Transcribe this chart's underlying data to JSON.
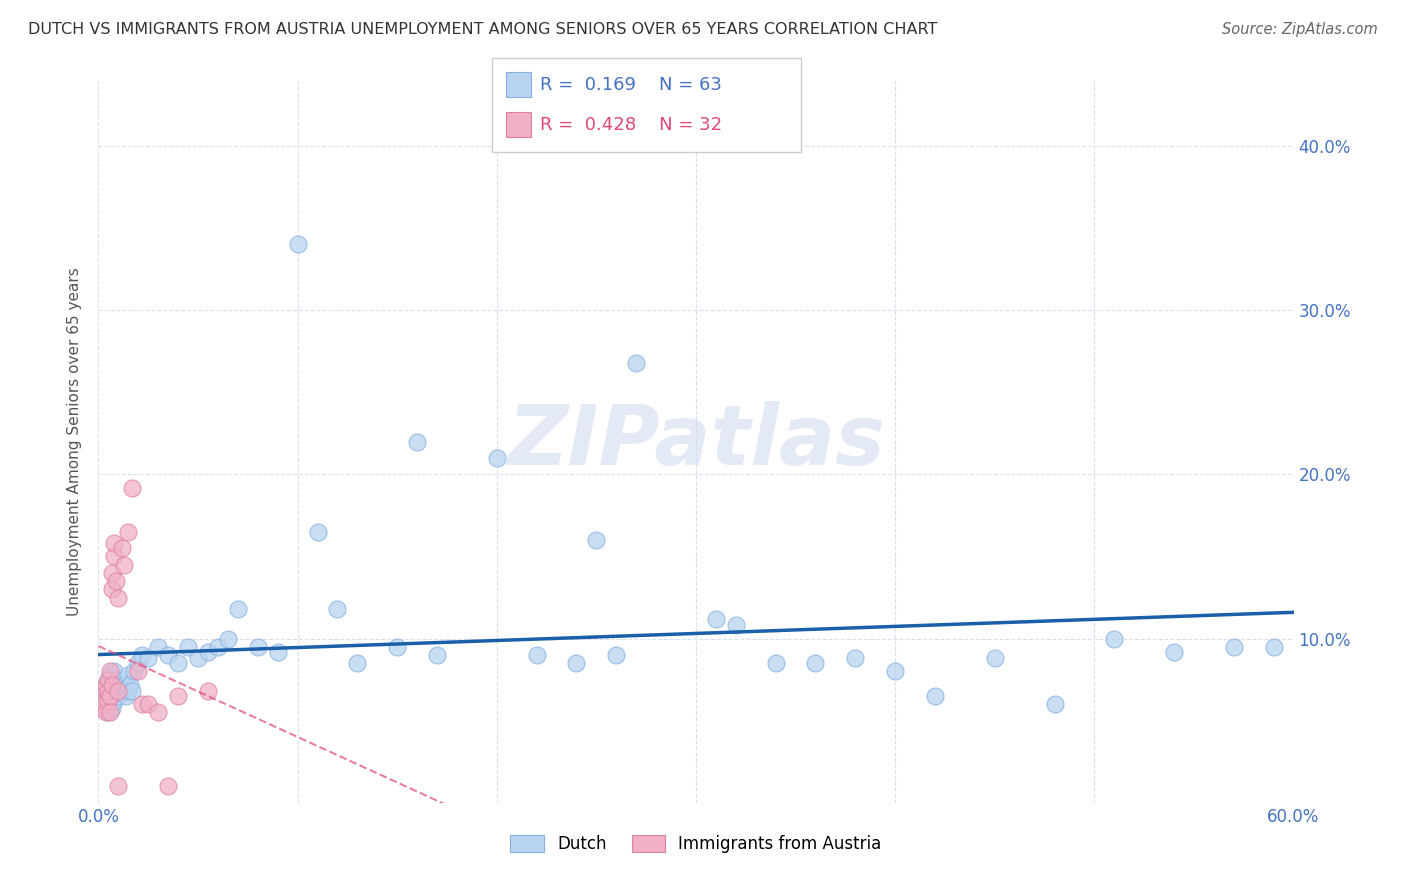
{
  "title": "DUTCH VS IMMIGRANTS FROM AUSTRIA UNEMPLOYMENT AMONG SENIORS OVER 65 YEARS CORRELATION CHART",
  "source": "Source: ZipAtlas.com",
  "ylabel": "Unemployment Among Seniors over 65 years",
  "xlim": [
    0.0,
    0.6
  ],
  "ylim": [
    0.0,
    0.44
  ],
  "xticks": [
    0.0,
    0.1,
    0.2,
    0.3,
    0.4,
    0.5,
    0.6
  ],
  "xtick_labels": [
    "0.0%",
    "",
    "",
    "",
    "",
    "",
    "60.0%"
  ],
  "yticks": [
    0.0,
    0.1,
    0.2,
    0.3,
    0.4
  ],
  "ytick_labels_right": [
    "",
    "10.0%",
    "20.0%",
    "30.0%",
    "40.0%"
  ],
  "legend_labels": [
    "Dutch",
    "Immigrants from Austria"
  ],
  "dutch_color": "#b8d4f0",
  "austria_color": "#f0b0c8",
  "dutch_edge": "#85b0e0",
  "austria_edge": "#e080a0",
  "dutch_R": 0.169,
  "dutch_N": 63,
  "austria_R": 0.428,
  "austria_N": 32,
  "dutch_line_color": "#1a5fa8",
  "austria_line_color": "#e04878",
  "watermark": "ZIPatlas",
  "dutch_x": [
    0.002,
    0.003,
    0.004,
    0.005,
    0.005,
    0.006,
    0.006,
    0.007,
    0.007,
    0.008,
    0.008,
    0.009,
    0.01,
    0.01,
    0.011,
    0.012,
    0.013,
    0.014,
    0.015,
    0.015,
    0.016,
    0.017,
    0.018,
    0.02,
    0.022,
    0.025,
    0.03,
    0.035,
    0.04,
    0.045,
    0.05,
    0.055,
    0.06,
    0.065,
    0.07,
    0.08,
    0.09,
    0.1,
    0.11,
    0.12,
    0.13,
    0.15,
    0.16,
    0.17,
    0.2,
    0.22,
    0.24,
    0.25,
    0.26,
    0.27,
    0.31,
    0.32,
    0.34,
    0.36,
    0.38,
    0.4,
    0.42,
    0.45,
    0.48,
    0.51,
    0.54,
    0.57,
    0.59
  ],
  "dutch_y": [
    0.07,
    0.065,
    0.06,
    0.055,
    0.075,
    0.068,
    0.078,
    0.058,
    0.072,
    0.062,
    0.08,
    0.07,
    0.065,
    0.075,
    0.068,
    0.07,
    0.072,
    0.065,
    0.068,
    0.078,
    0.072,
    0.068,
    0.08,
    0.085,
    0.09,
    0.088,
    0.095,
    0.09,
    0.085,
    0.095,
    0.088,
    0.092,
    0.095,
    0.1,
    0.118,
    0.095,
    0.092,
    0.34,
    0.165,
    0.118,
    0.085,
    0.095,
    0.22,
    0.09,
    0.21,
    0.09,
    0.085,
    0.16,
    0.09,
    0.268,
    0.112,
    0.108,
    0.085,
    0.085,
    0.088,
    0.08,
    0.065,
    0.088,
    0.06,
    0.1,
    0.092,
    0.095,
    0.095
  ],
  "austria_x": [
    0.002,
    0.002,
    0.003,
    0.003,
    0.004,
    0.004,
    0.005,
    0.005,
    0.005,
    0.006,
    0.006,
    0.006,
    0.007,
    0.007,
    0.007,
    0.008,
    0.008,
    0.009,
    0.01,
    0.01,
    0.012,
    0.013,
    0.015,
    0.017,
    0.02,
    0.022,
    0.025,
    0.03,
    0.035,
    0.04,
    0.055,
    0.01
  ],
  "austria_y": [
    0.065,
    0.058,
    0.07,
    0.06,
    0.072,
    0.055,
    0.075,
    0.062,
    0.068,
    0.08,
    0.065,
    0.055,
    0.13,
    0.14,
    0.072,
    0.15,
    0.158,
    0.135,
    0.125,
    0.068,
    0.155,
    0.145,
    0.165,
    0.192,
    0.08,
    0.06,
    0.06,
    0.055,
    0.01,
    0.065,
    0.068,
    0.01
  ]
}
